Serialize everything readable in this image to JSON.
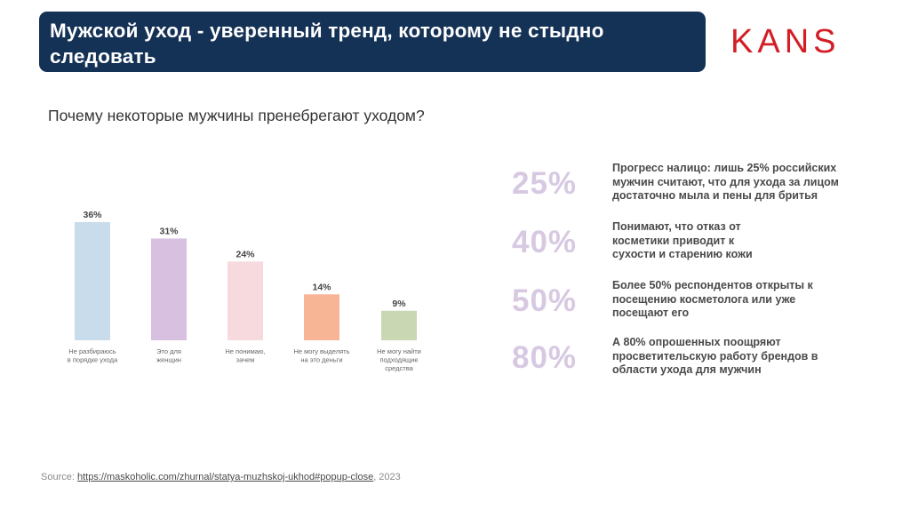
{
  "header": {
    "title": "Мужской уход -  уверенный тренд, которому не стыдно следовать"
  },
  "logo": {
    "text": "KANS"
  },
  "subtitle": "Почему некоторые мужчины пренебрегают уходом?",
  "chart_data": {
    "type": "bar",
    "title": "",
    "xlabel": "",
    "ylabel": "",
    "ylim": [
      0,
      40
    ],
    "categories": [
      [
        "Не разбираюсь",
        "в порядке ухода"
      ],
      [
        "Это для",
        "женщин"
      ],
      [
        "Не понимаю,",
        "зачем"
      ],
      [
        "Не могу выделять",
        "на это деньги"
      ],
      [
        "Не могу найти",
        "подходящие",
        "средства"
      ]
    ],
    "values": [
      36,
      31,
      24,
      14,
      9
    ],
    "value_labels": [
      "36%",
      "31%",
      "24%",
      "14%",
      "9%"
    ],
    "colors": [
      "#c9dcec",
      "#d7c0e0",
      "#f6dade",
      "#f8b596",
      "#c9d7b3"
    ]
  },
  "stats": [
    {
      "percent": "25%",
      "text": "Прогресс налицо: лишь 25% российских мужчин считают, что для ухода за лицом достаточно мыла и пены для бритья"
    },
    {
      "percent": "40%",
      "text": "Понимают, что отказ от косметики приводит к сухости и старению кожи"
    },
    {
      "percent": "50%",
      "text": "Более 50% респондентов открыты к посещению косметолога или уже посещают его"
    },
    {
      "percent": "80%",
      "text": "А 80% опрошенных поощряют просветительскую работу брендов в области ухода для мужчин"
    }
  ],
  "source": {
    "label": "Source: ",
    "url": "https://maskoholic.com/zhurnal/statya-muzhskoj-ukhod#popup-close",
    "year": ", 2023"
  }
}
